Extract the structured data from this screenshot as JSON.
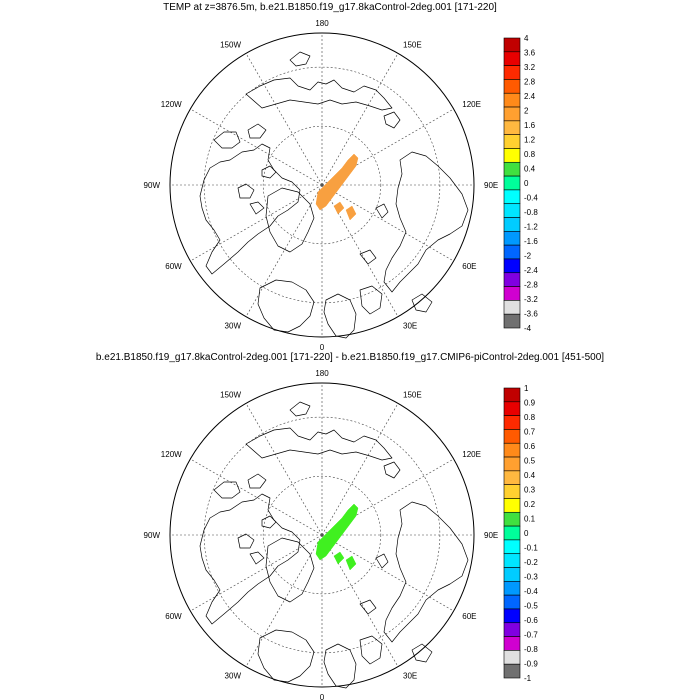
{
  "panels": [
    {
      "title": "TEMP at z=3876.5m, b.e21.B1850.f19_g17.8kaControl-2deg.001 [171-220]",
      "lon_labels": [
        "180",
        "150E",
        "120E",
        "90E",
        "60E",
        "30E",
        "0",
        "30W",
        "60W",
        "90W",
        "120W",
        "150W"
      ],
      "colorbar": {
        "labels": [
          "4",
          "3.6",
          "3.2",
          "2.8",
          "2.4",
          "2",
          "1.6",
          "1.2",
          "0.8",
          "0.4",
          "0",
          "-0.4",
          "-0.8",
          "-1.2",
          "-1.6",
          "-2",
          "-2.4",
          "-2.8",
          "-3.2",
          "-3.6",
          "-4"
        ],
        "colors": [
          "#c00000",
          "#e80000",
          "#ff2a00",
          "#ff5a00",
          "#ff8a1a",
          "#ffa030",
          "#ffb840",
          "#ffd030",
          "#ffff00",
          "#40e040",
          "#00ff9a",
          "#00ffff",
          "#00e6ff",
          "#00ccff",
          "#0099ff",
          "#0066ff",
          "#0000ff",
          "#8000e0",
          "#d000d0",
          "#e0e0e0",
          "#707070"
        ]
      },
      "anomaly_color": "#f8a040",
      "anomaly_value_range": [
        2.0,
        2.4
      ]
    },
    {
      "title": "b.e21.B1850.f19_g17.8kaControl-2deg.001 [171-220] - b.e21.B1850.f19_g17.CMIP6-piControl-2deg.001 [451-500]",
      "lon_labels": [
        "180",
        "150E",
        "120E",
        "90E",
        "60E",
        "30E",
        "0",
        "30W",
        "60W",
        "90W",
        "120W",
        "150W"
      ],
      "colorbar": {
        "labels": [
          "1",
          "0.9",
          "0.8",
          "0.7",
          "0.6",
          "0.5",
          "0.4",
          "0.3",
          "0.2",
          "0.1",
          "0",
          "-0.1",
          "-0.2",
          "-0.3",
          "-0.4",
          "-0.5",
          "-0.6",
          "-0.7",
          "-0.8",
          "-0.9",
          "-1"
        ],
        "colors": [
          "#c00000",
          "#e80000",
          "#ff2a00",
          "#ff5a00",
          "#ff8a1a",
          "#ffa030",
          "#ffb840",
          "#ffd030",
          "#ffff00",
          "#40e040",
          "#00ff9a",
          "#00ffff",
          "#00e6ff",
          "#00ccff",
          "#0099ff",
          "#0066ff",
          "#0000ff",
          "#8000e0",
          "#d000d0",
          "#e0e0e0",
          "#707070"
        ]
      },
      "anomaly_color": "#40f020",
      "anomaly_value_range": [
        0.0,
        0.1
      ]
    }
  ]
}
